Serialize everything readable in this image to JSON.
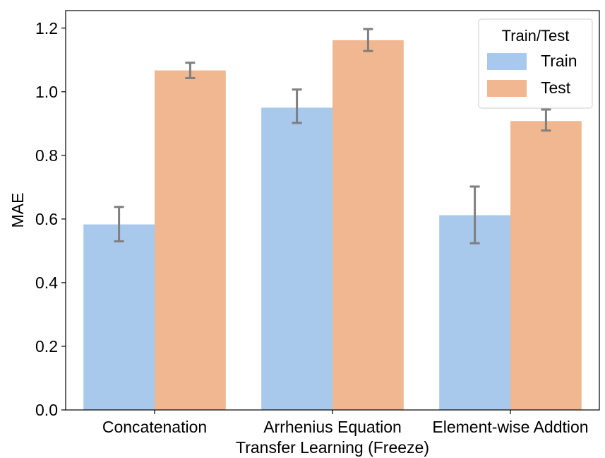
{
  "chart_data": {
    "type": "bar",
    "title": "",
    "xlabel": "Transfer Learning (Freeze)",
    "ylabel": "MAE",
    "categories": [
      "Concatenation",
      "Arrhenius Equation",
      "Element-wise Addtion"
    ],
    "series": [
      {
        "name": "Train",
        "color": "#a8c8ec",
        "values": [
          0.583,
          0.95,
          0.612
        ],
        "error_low": [
          0.53,
          0.902,
          0.524
        ],
        "error_high": [
          0.638,
          1.007,
          0.702
        ]
      },
      {
        "name": "Test",
        "color": "#f0b791",
        "values": [
          1.067,
          1.162,
          0.908
        ],
        "error_low": [
          1.043,
          1.128,
          0.878
        ],
        "error_high": [
          1.091,
          1.197,
          0.944
        ]
      }
    ],
    "ylim": [
      0.0,
      1.255
    ],
    "yticks": [
      "0.0",
      "0.2",
      "0.4",
      "0.6",
      "0.8",
      "1.0",
      "1.2"
    ],
    "grid": false,
    "legend": {
      "title": "Train/Test",
      "placement": "top-right"
    },
    "error_bar_color": "#7f7f7f"
  }
}
